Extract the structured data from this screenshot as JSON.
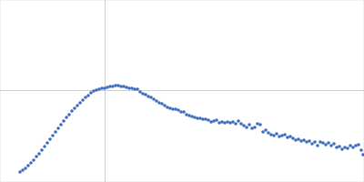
{
  "chart_data": {
    "type": "scatter",
    "color": "#3a6bbd",
    "marker": "circle",
    "grid": true,
    "tick_labels": false,
    "xlim": [
      0,
      400
    ],
    "ylim": [
      0,
      200
    ],
    "xticks": [
      115
    ],
    "yticks": [
      101
    ],
    "x": [
      22,
      25,
      28,
      31,
      34,
      37,
      40,
      43,
      46,
      49,
      52,
      55,
      58,
      61,
      64,
      67,
      70,
      73,
      76,
      79,
      82,
      85,
      88,
      91,
      94,
      97,
      100,
      103,
      106,
      109,
      112,
      115,
      118,
      121,
      124,
      127,
      130,
      133,
      136,
      139,
      142,
      145,
      148,
      151,
      154,
      157,
      160,
      163,
      166,
      169,
      172,
      175,
      178,
      181,
      184,
      187,
      190,
      193,
      196,
      199,
      202,
      205,
      208,
      211,
      214,
      217,
      220,
      223,
      226,
      229,
      232,
      235,
      238,
      241,
      244,
      247,
      250,
      253,
      256,
      259,
      262,
      265,
      268,
      271,
      274,
      277,
      280,
      283,
      286,
      289,
      292,
      295,
      298,
      301,
      304,
      307,
      310,
      313,
      316,
      319,
      322,
      325,
      328,
      331,
      334,
      337,
      340,
      343,
      346,
      349,
      352,
      355,
      358,
      361,
      364,
      367,
      370,
      373,
      376,
      379,
      382,
      385,
      388,
      391,
      394,
      397,
      399
    ],
    "values": [
      11,
      13,
      15,
      18,
      21,
      24,
      28,
      31,
      35,
      39,
      43,
      47,
      51,
      55,
      59,
      63,
      67,
      71,
      74,
      78,
      81,
      84,
      87,
      90,
      93,
      95,
      98,
      100,
      101,
      102,
      103,
      103,
      104,
      105,
      105,
      106,
      106,
      105,
      105,
      104,
      103,
      103,
      102,
      102,
      99,
      97,
      96,
      94,
      93,
      91,
      89,
      87,
      86,
      84,
      82,
      81,
      80,
      80,
      79,
      77,
      77,
      74,
      73,
      72,
      71,
      70,
      70,
      69,
      69,
      68,
      66,
      67,
      68,
      65,
      66,
      65,
      66,
      65,
      66,
      64,
      67,
      64,
      62,
      60,
      63,
      59,
      60,
      64,
      63,
      55,
      57,
      54,
      52,
      51,
      53,
      50,
      51,
      52,
      49,
      50,
      48,
      46,
      47,
      45,
      46,
      44,
      45,
      42,
      44,
      40,
      44,
      43,
      41,
      43,
      40,
      42,
      38,
      39,
      36,
      38,
      37,
      40,
      38,
      40,
      41,
      35,
      30
    ]
  }
}
